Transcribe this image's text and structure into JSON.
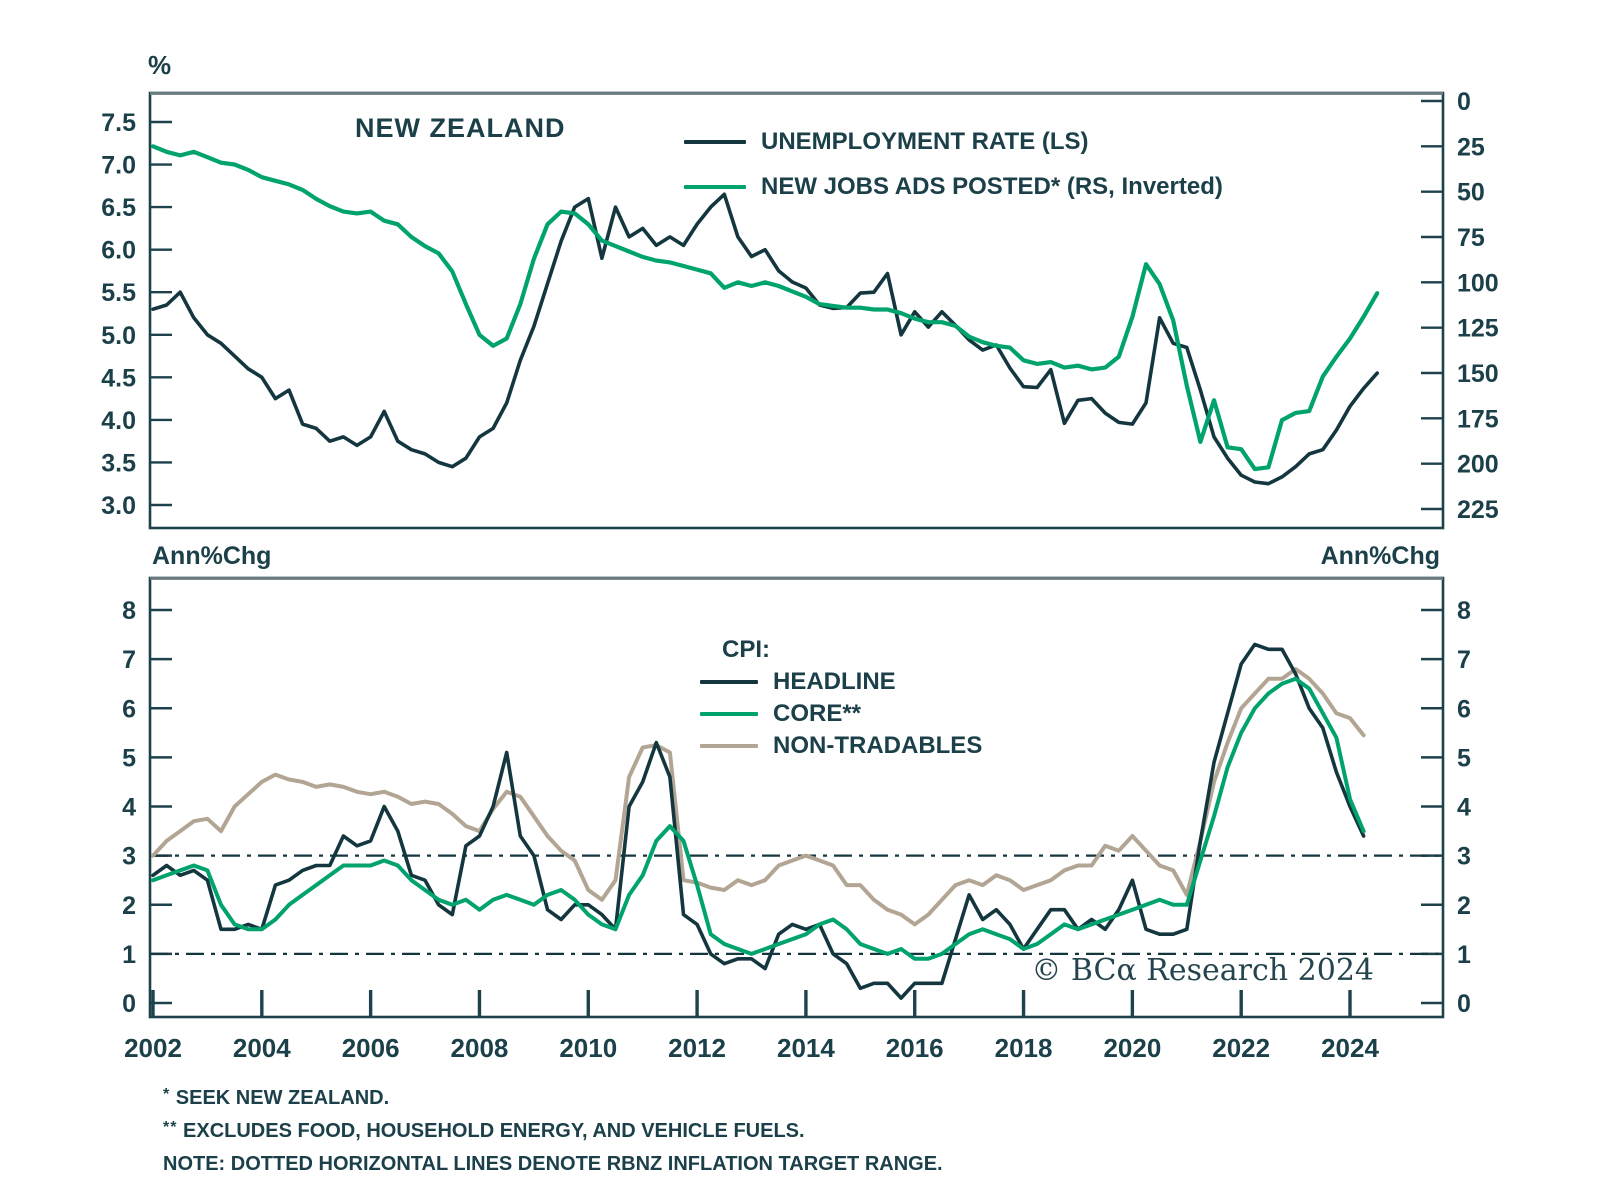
{
  "title": "NEW ZEALAND",
  "branding": "© BCα Research 2024",
  "colors": {
    "dark": "#14363f",
    "green": "#00a36e",
    "tan": "#b3a593",
    "text": "#1c4049",
    "frame": "#1e424c",
    "frame_top": "#6a7b80"
  },
  "footnotes": [
    {
      "marker": "*",
      "text": " SEEK NEW ZEALAND."
    },
    {
      "marker": "**",
      "text": " EXCLUDES FOOD, HOUSEHOLD ENERGY, AND VEHICLE FUELS."
    },
    {
      "marker": "",
      "text": "NOTE: DOTTED HORIZONTAL LINES DENOTE RBNZ INFLATION TARGET RANGE."
    }
  ],
  "chart_data": [
    {
      "type": "line",
      "panel": "top",
      "title": "NEW ZEALAND",
      "ylabel_left": "%",
      "x_start": 2002.0,
      "x_step": 0.25,
      "x_range": [
        2002,
        2024.5
      ],
      "left_axis": {
        "ticks": [
          "7.5",
          "7.0",
          "6.5",
          "6.0",
          "5.5",
          "5.0",
          "4.5",
          "4.0",
          "3.5",
          "3.0"
        ],
        "inverted": false
      },
      "right_axis": {
        "ticks": [
          "0",
          "25",
          "50",
          "75",
          "100",
          "125",
          "150",
          "175",
          "200",
          "225"
        ],
        "inverted": true
      },
      "grid": false,
      "legend_position": "top-right-inside",
      "series": [
        {
          "name": "UNEMPLOYMENT RATE (LS)",
          "axis": "left",
          "color_key": "dark",
          "values": [
            5.3,
            5.35,
            5.5,
            5.2,
            5.0,
            4.9,
            4.75,
            4.6,
            4.5,
            4.25,
            4.35,
            3.95,
            3.9,
            3.75,
            3.8,
            3.7,
            3.8,
            4.1,
            3.75,
            3.65,
            3.6,
            3.5,
            3.45,
            3.55,
            3.8,
            3.9,
            4.2,
            4.7,
            5.1,
            5.6,
            6.1,
            6.5,
            6.6,
            5.9,
            6.5,
            6.15,
            6.25,
            6.05,
            6.15,
            6.05,
            6.3,
            6.5,
            6.65,
            6.15,
            5.92,
            6.0,
            5.75,
            5.62,
            5.55,
            5.35,
            5.31,
            5.32,
            5.49,
            5.5,
            5.72,
            5.0,
            5.27,
            5.09,
            5.27,
            5.11,
            4.94,
            4.82,
            4.88,
            4.61,
            4.39,
            4.38,
            4.59,
            3.96,
            4.23,
            4.25,
            4.08,
            3.97,
            3.95,
            4.2,
            5.2,
            4.9,
            4.85,
            4.35,
            3.8,
            3.55,
            3.35,
            3.27,
            3.25,
            3.33,
            3.45,
            3.6,
            3.65,
            3.88,
            4.16,
            4.37,
            4.55
          ]
        },
        {
          "name": "NEW JOBS ADS POSTED* (RS, Inverted)",
          "axis": "right",
          "color_key": "green",
          "values": [
            25,
            28,
            30,
            28,
            31,
            34,
            35,
            38,
            42,
            44,
            46,
            49,
            54,
            58,
            61,
            62,
            61,
            66,
            68,
            75,
            80,
            84,
            94,
            112,
            129,
            135,
            131,
            112,
            87,
            68,
            61,
            62,
            68,
            77,
            80,
            83,
            86,
            88,
            89,
            91,
            93,
            95,
            103,
            100,
            102,
            100,
            102,
            105,
            108,
            112,
            113,
            114,
            114,
            115,
            115,
            117,
            120,
            122,
            122,
            124,
            130,
            133,
            135,
            136,
            143,
            145,
            144,
            147,
            146,
            148,
            147,
            141,
            119,
            90,
            101,
            121,
            157,
            188,
            165,
            191,
            192,
            203,
            202,
            176,
            172,
            171,
            152,
            141,
            131,
            119,
            106
          ]
        }
      ]
    },
    {
      "type": "line",
      "panel": "bottom",
      "legend_title": "CPI:",
      "ylabel_left": "Ann%Chg",
      "ylabel_right": "Ann%Chg",
      "x_start": 2002.0,
      "x_step": 0.25,
      "x_range": [
        2002,
        2024.25
      ],
      "left_axis": {
        "ticks": [
          "8",
          "7",
          "6",
          "5",
          "4",
          "3",
          "2",
          "1",
          "0"
        ],
        "inverted": false
      },
      "right_axis": {
        "ticks": [
          "8",
          "7",
          "6",
          "5",
          "4",
          "3",
          "2",
          "1",
          "0"
        ],
        "inverted": false
      },
      "target_range_lines": [
        3,
        1
      ],
      "x_axis": {
        "ticks": [
          "2002",
          "2004",
          "2006",
          "2008",
          "2010",
          "2012",
          "2014",
          "2016",
          "2018",
          "2020",
          "2022",
          "2024"
        ]
      },
      "grid": false,
      "series": [
        {
          "name": "HEADLINE",
          "axis": "left",
          "color_key": "dark",
          "values": [
            2.6,
            2.8,
            2.6,
            2.7,
            2.5,
            1.5,
            1.5,
            1.6,
            1.5,
            2.4,
            2.5,
            2.7,
            2.8,
            2.8,
            3.4,
            3.2,
            3.3,
            4.0,
            3.5,
            2.6,
            2.5,
            2.0,
            1.8,
            3.2,
            3.4,
            4.0,
            5.1,
            3.4,
            3.0,
            1.9,
            1.7,
            2.0,
            2.0,
            1.8,
            1.5,
            4.0,
            4.5,
            5.3,
            4.6,
            1.8,
            1.6,
            1.0,
            0.8,
            0.9,
            0.9,
            0.7,
            1.4,
            1.6,
            1.5,
            1.6,
            1.0,
            0.8,
            0.3,
            0.4,
            0.4,
            0.1,
            0.4,
            0.4,
            0.4,
            1.3,
            2.2,
            1.7,
            1.9,
            1.6,
            1.1,
            1.5,
            1.9,
            1.9,
            1.5,
            1.7,
            1.5,
            1.9,
            2.5,
            1.5,
            1.4,
            1.4,
            1.5,
            3.3,
            4.9,
            5.9,
            6.9,
            7.3,
            7.2,
            7.2,
            6.7,
            6.0,
            5.6,
            4.7,
            4.0,
            3.4
          ]
        },
        {
          "name": "CORE**",
          "axis": "left",
          "color_key": "green",
          "values": [
            2.5,
            2.6,
            2.7,
            2.8,
            2.7,
            2.0,
            1.6,
            1.5,
            1.5,
            1.7,
            2.0,
            2.2,
            2.4,
            2.6,
            2.8,
            2.8,
            2.8,
            2.9,
            2.8,
            2.5,
            2.3,
            2.1,
            2.0,
            2.1,
            1.9,
            2.1,
            2.2,
            2.1,
            2.0,
            2.2,
            2.3,
            2.1,
            1.8,
            1.6,
            1.5,
            2.2,
            2.6,
            3.3,
            3.6,
            3.3,
            2.4,
            1.4,
            1.2,
            1.1,
            1.0,
            1.1,
            1.2,
            1.3,
            1.4,
            1.6,
            1.7,
            1.5,
            1.2,
            1.1,
            1.0,
            1.1,
            0.9,
            0.9,
            1.0,
            1.2,
            1.4,
            1.5,
            1.4,
            1.3,
            1.1,
            1.2,
            1.4,
            1.6,
            1.5,
            1.6,
            1.7,
            1.8,
            1.9,
            2.0,
            2.1,
            2.0,
            2.0,
            2.9,
            3.8,
            4.8,
            5.5,
            6.0,
            6.3,
            6.5,
            6.6,
            6.4,
            5.9,
            5.4,
            4.15,
            3.5
          ]
        },
        {
          "name": "NON-TRADABLES",
          "axis": "left",
          "color_key": "tan",
          "values": [
            3.0,
            3.3,
            3.5,
            3.7,
            3.75,
            3.5,
            4.0,
            4.25,
            4.5,
            4.65,
            4.55,
            4.5,
            4.4,
            4.45,
            4.4,
            4.3,
            4.25,
            4.3,
            4.2,
            4.05,
            4.1,
            4.05,
            3.85,
            3.6,
            3.5,
            3.95,
            4.3,
            4.2,
            3.8,
            3.4,
            3.1,
            2.9,
            2.3,
            2.1,
            2.5,
            4.6,
            5.2,
            5.25,
            5.1,
            2.5,
            2.45,
            2.35,
            2.3,
            2.5,
            2.4,
            2.5,
            2.8,
            2.9,
            3.0,
            2.9,
            2.8,
            2.4,
            2.4,
            2.1,
            1.9,
            1.8,
            1.6,
            1.8,
            2.1,
            2.4,
            2.5,
            2.4,
            2.6,
            2.5,
            2.3,
            2.4,
            2.5,
            2.7,
            2.8,
            2.8,
            3.2,
            3.1,
            3.4,
            3.1,
            2.8,
            2.7,
            2.2,
            3.3,
            4.5,
            5.3,
            6.0,
            6.3,
            6.6,
            6.6,
            6.8,
            6.6,
            6.3,
            5.9,
            5.8,
            5.45
          ]
        }
      ]
    }
  ]
}
